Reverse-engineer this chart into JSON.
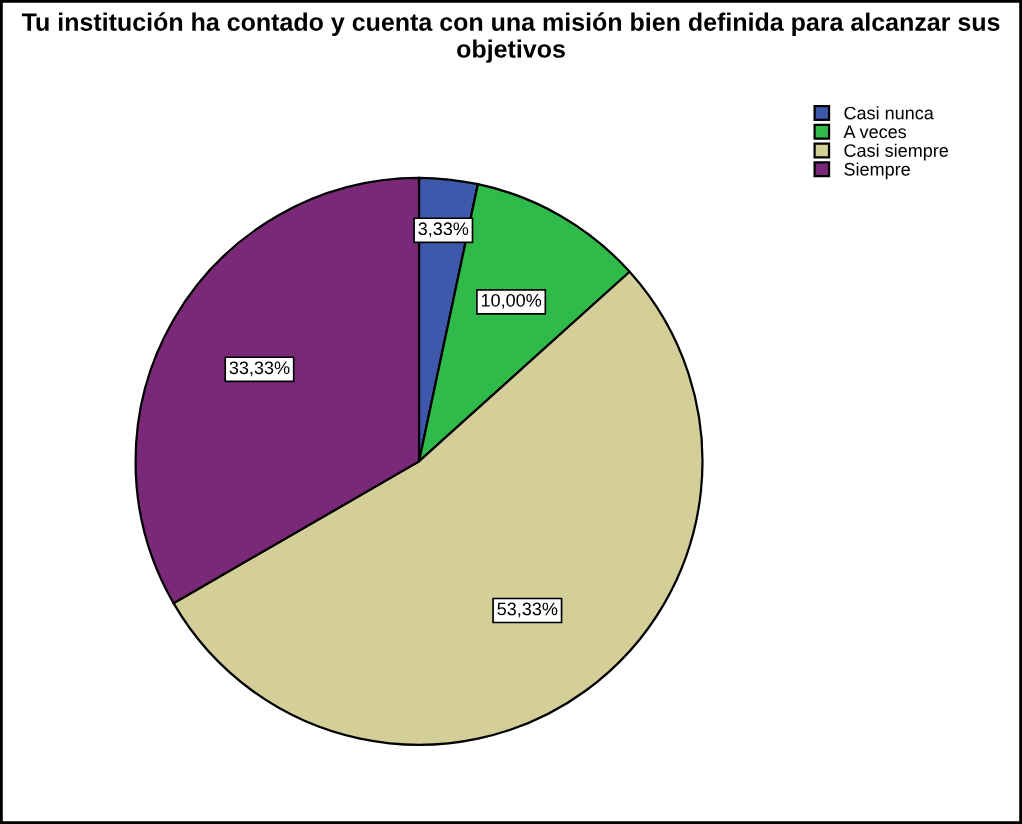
{
  "chart_data": {
    "type": "pie",
    "title": "Tu institución ha contado y cuenta con una misión bien definida para alcanzar sus objetivos",
    "categories": [
      "Casi nunca",
      "A veces",
      "Casi siempre",
      "Siempre"
    ],
    "values": [
      3.33,
      10.0,
      53.33,
      33.33
    ],
    "value_labels": [
      "3,33%",
      "10,00%",
      "53,33%",
      "33,33%"
    ],
    "colors": [
      "#3e58ac",
      "#2fbb4a",
      "#d4ce98",
      "#7a2878"
    ],
    "legend": "top right"
  }
}
